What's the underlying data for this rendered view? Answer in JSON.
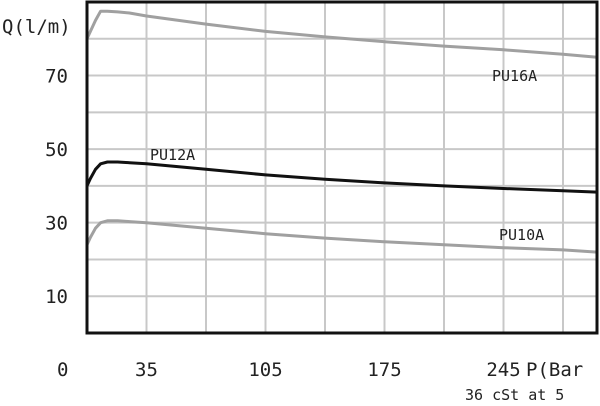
{
  "chart_data": {
    "type": "line",
    "ylabel": "Q(l/m)",
    "xlabel": "P(Bar",
    "footnote": "36 cSt at 5",
    "x_origin_label": "0",
    "xlim": [
      0,
      300
    ],
    "ylim": [
      0,
      90
    ],
    "x_ticks": [
      35,
      105,
      175,
      245
    ],
    "x_tick_labels": [
      "35",
      "105",
      "175",
      "245"
    ],
    "y_ticks": [
      10,
      30,
      50,
      70
    ],
    "y_tick_labels": [
      "10",
      "30",
      "50",
      "70"
    ],
    "x_grid": [
      35,
      70,
      105,
      140,
      175,
      210,
      245,
      280
    ],
    "y_grid": [
      10,
      20,
      30,
      40,
      50,
      60,
      70,
      80
    ],
    "grid": true,
    "series": [
      {
        "name": "PU16A",
        "color": "#a0a0a0",
        "x": [
          0,
          2,
          5,
          8,
          12,
          18,
          25,
          35,
          70,
          105,
          140,
          175,
          210,
          245,
          280,
          300
        ],
        "y": [
          80,
          82,
          85,
          87.5,
          87.5,
          87.3,
          87,
          86.2,
          84,
          82,
          80.5,
          79.2,
          78,
          77,
          75.8,
          75
        ]
      },
      {
        "name": "PU12A",
        "color": "#111111",
        "x": [
          0,
          2,
          5,
          8,
          12,
          18,
          25,
          35,
          70,
          105,
          140,
          175,
          210,
          245,
          280,
          300
        ],
        "y": [
          40,
          42,
          44.5,
          46,
          46.5,
          46.5,
          46.3,
          46,
          44.5,
          43,
          41.8,
          40.8,
          40,
          39.3,
          38.7,
          38.3
        ]
      },
      {
        "name": "PU10A",
        "color": "#a0a0a0",
        "x": [
          0,
          2,
          5,
          8,
          12,
          18,
          25,
          35,
          70,
          105,
          140,
          175,
          210,
          245,
          280,
          300
        ],
        "y": [
          24,
          26,
          28.5,
          30,
          30.5,
          30.5,
          30.3,
          30,
          28.5,
          27,
          25.8,
          24.8,
          24,
          23.2,
          22.6,
          22
        ]
      }
    ]
  }
}
